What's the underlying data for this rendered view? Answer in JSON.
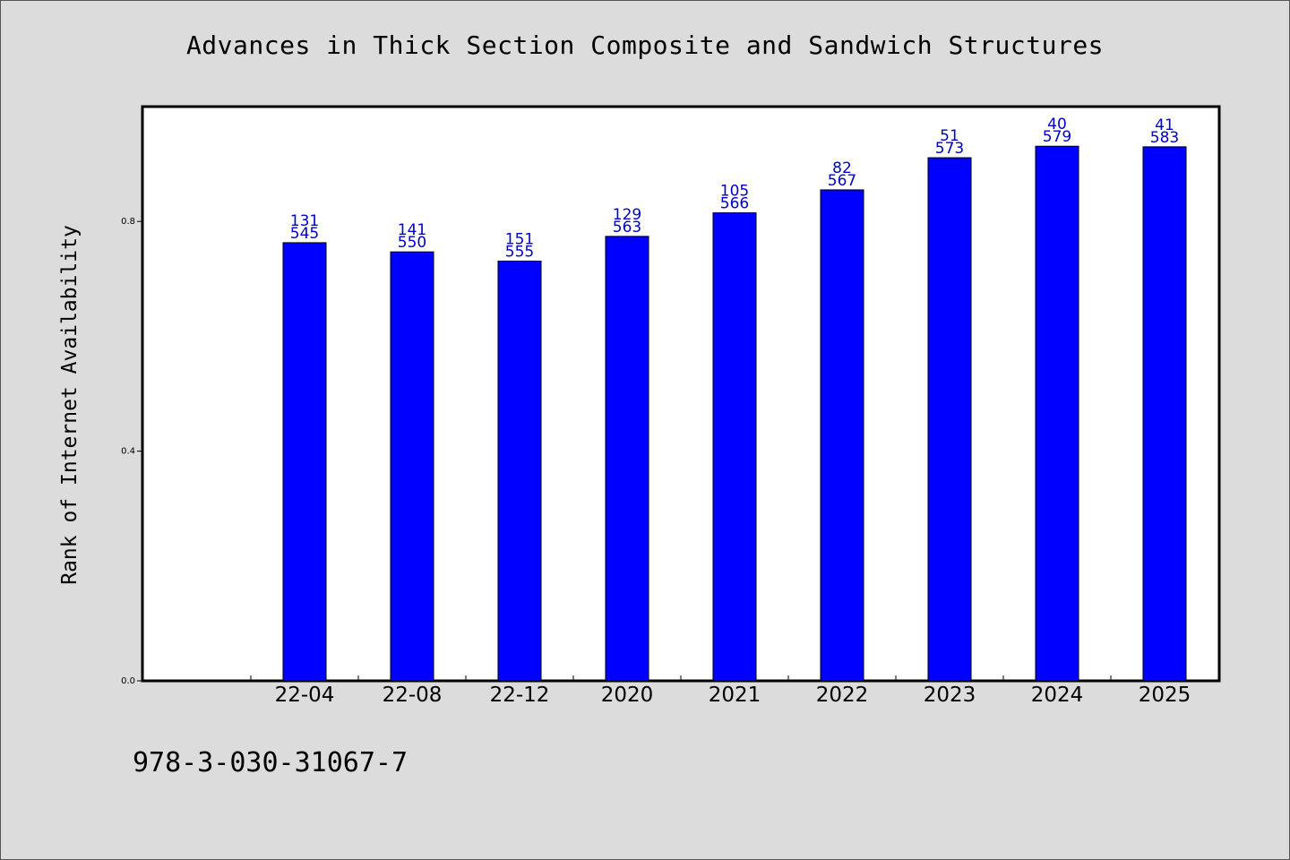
{
  "page": {
    "title": "Advances in Thick Section Composite and Sandwich Structures",
    "footer": "978-3-030-31067-7"
  },
  "chart_data": {
    "type": "bar",
    "title": "Advances in Thick Section Composite and Sandwich Structures",
    "xlabel": "",
    "ylabel": "Rank of Internet Availability",
    "categories": [
      "22-04",
      "22-08",
      "22-12",
      "2020",
      "2021",
      "2022",
      "2023",
      "2024",
      "2025"
    ],
    "values": [
      0.763,
      0.747,
      0.731,
      0.774,
      0.815,
      0.855,
      0.911,
      0.931,
      0.93
    ],
    "labels_top": [
      "131",
      "141",
      "151",
      "129",
      "105",
      "82",
      "51",
      "40",
      "41"
    ],
    "labels_bottom": [
      "545",
      "550",
      "555",
      "563",
      "566",
      "567",
      "573",
      "579",
      "583"
    ],
    "ylim": [
      0.0,
      1.0
    ],
    "yticks": [
      0.0,
      0.4,
      0.8
    ],
    "ytick_labels": [
      "0.0",
      "0.4",
      "0.8"
    ],
    "grid": false,
    "legend": "none",
    "colors": {
      "bar": "#0000ff",
      "value_label": "#0000cc",
      "background": "#dcdcdc",
      "plot_bg": "#ffffff"
    }
  }
}
